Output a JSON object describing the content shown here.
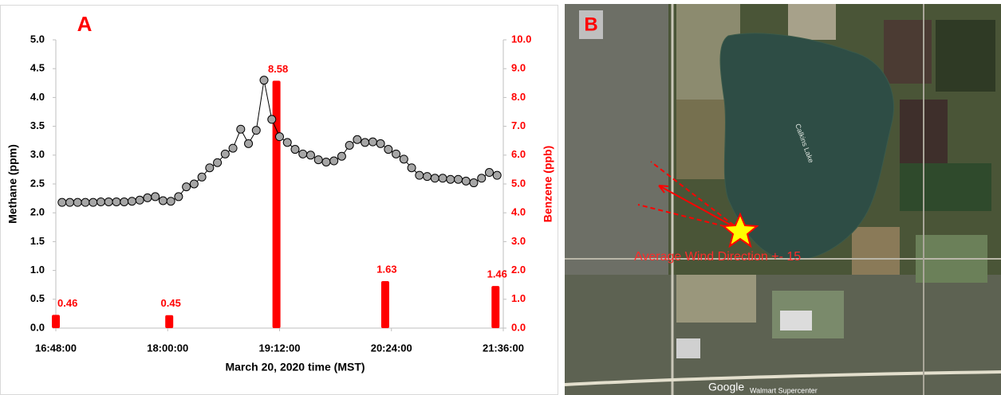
{
  "chart_data": {
    "type": "combo",
    "panel_label": "A",
    "x_label": "March 20, 2020 time (MST)",
    "y_label": "Methane (ppm)",
    "y2_label": "Benzene (ppb)",
    "xlim": [
      "16:48:00",
      "21:36:00"
    ],
    "xticks": [
      "16:48:00",
      "18:00:00",
      "19:12:00",
      "20:24:00",
      "21:36:00"
    ],
    "ylim": [
      0,
      5
    ],
    "yticks": [
      {
        "value": 0,
        "label": "0.0"
      },
      0.5,
      {
        "value": 1,
        "label": "1.0"
      },
      1.5,
      {
        "value": 2,
        "label": "2.0"
      },
      2.5,
      {
        "value": 3,
        "label": "3.0"
      },
      3.5,
      {
        "value": 4,
        "label": "4.0"
      },
      4.5,
      {
        "value": 5,
        "label": "5.0"
      }
    ],
    "y2lim": [
      0,
      10
    ],
    "y2ticks": [
      {
        "value": 0,
        "label": "0.0"
      },
      {
        "value": 1,
        "label": "1.0"
      },
      {
        "value": 2,
        "label": "2.0"
      },
      {
        "value": 3,
        "label": "3.0"
      },
      {
        "value": 4,
        "label": "4.0"
      },
      {
        "value": 5,
        "label": "5.0"
      },
      {
        "value": 6,
        "label": "6.0"
      },
      {
        "value": 7,
        "label": "7.0"
      },
      {
        "value": 8,
        "label": "8.0"
      },
      {
        "value": 9,
        "label": "9.0"
      },
      {
        "value": 10,
        "label": "10.0"
      }
    ],
    "series": [
      {
        "type": "line",
        "color": "#a6a6a6",
        "x": [
          "16:52:00",
          "16:57:00",
          "17:02:00",
          "17:07:00",
          "17:12:00",
          "17:17:00",
          "17:22:00",
          "17:27:00",
          "17:32:00",
          "17:37:00",
          "17:42:00",
          "17:47:00",
          "17:52:00",
          "17:57:00",
          "18:02:00",
          "18:07:00",
          "18:12:00",
          "18:17:00",
          "18:22:00",
          "18:27:00",
          "18:32:00",
          "18:37:00",
          "18:42:00",
          "18:47:00",
          "18:52:00",
          "18:57:00",
          "19:02:00",
          "19:07:00",
          "19:12:00",
          "19:17:00",
          "19:22:00",
          "19:27:00",
          "19:32:00",
          "19:37:00",
          "19:42:00",
          "19:47:00",
          "19:52:00",
          "19:57:00",
          "20:02:00",
          "20:07:00",
          "20:12:00",
          "20:17:00",
          "20:22:00",
          "20:27:00",
          "20:32:00",
          "20:37:00",
          "20:42:00",
          "20:47:00",
          "20:52:00",
          "20:57:00",
          "21:02:00",
          "21:07:00",
          "21:12:00",
          "21:17:00",
          "21:22:00",
          "21:27:00",
          "21:32:00"
        ],
        "values": [
          2.18,
          2.18,
          2.18,
          2.18,
          2.18,
          2.19,
          2.19,
          2.19,
          2.19,
          2.2,
          2.22,
          2.26,
          2.28,
          2.21,
          2.2,
          2.28,
          2.45,
          2.5,
          2.62,
          2.78,
          2.87,
          3.02,
          3.12,
          3.45,
          3.2,
          3.43,
          4.3,
          3.62,
          3.32,
          3.22,
          3.1,
          3.02,
          3.0,
          2.92,
          2.88,
          2.9,
          2.98,
          3.17,
          3.27,
          3.22,
          3.23,
          3.2,
          3.1,
          3.02,
          2.93,
          2.78,
          2.65,
          2.63,
          2.6,
          2.6,
          2.58,
          2.58,
          2.55,
          2.52,
          2.6,
          2.7,
          2.65
        ]
      },
      {
        "type": "bar",
        "axis": "y2",
        "color": "#ff0000",
        "x": [
          "16:48:00",
          "18:01:00",
          "19:10:00",
          "20:20:00",
          "21:31:00"
        ],
        "values": [
          0.46,
          0.45,
          8.58,
          1.63,
          1.46
        ]
      }
    ]
  },
  "map": {
    "label": "B",
    "lake_name": "Calkins Lake",
    "annotation": "Average Wind Direction +- 15",
    "attribution": "Google",
    "place": "Walmart Supercenter"
  }
}
